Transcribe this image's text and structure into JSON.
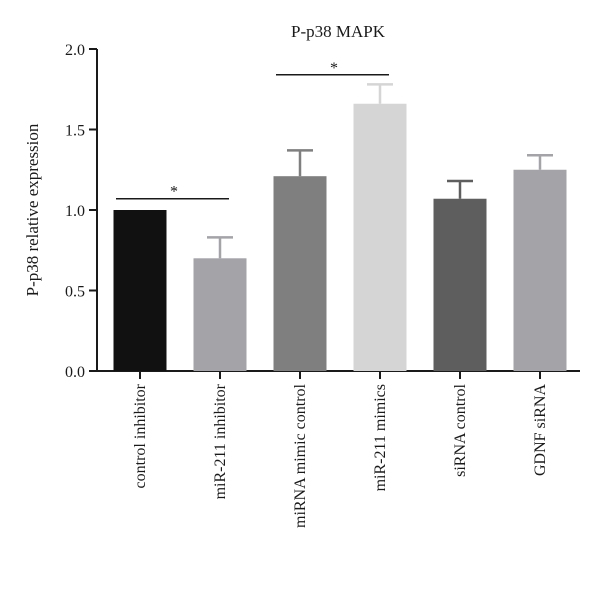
{
  "chart_data": {
    "type": "bar",
    "title": "P-p38 MAPK",
    "xlabel": "",
    "ylabel": "P-p38 relative expression",
    "ylim": [
      0,
      2.0
    ],
    "yticks": [
      0.0,
      0.5,
      1.0,
      1.5,
      2.0
    ],
    "ytick_labels": [
      "0.0",
      "0.5",
      "1.0",
      "1.5",
      "2.0"
    ],
    "grid": false,
    "legend": "none",
    "categories": [
      "control inhibitor",
      "miR-211 inhibitor",
      "miRNA mimic control",
      "miR-211 mimics",
      "siRNA control",
      "GDNF siRNA"
    ],
    "values": [
      1.0,
      0.7,
      1.21,
      1.66,
      1.07,
      1.25
    ],
    "errors": [
      0.0,
      0.13,
      0.16,
      0.12,
      0.11,
      0.09
    ],
    "colors": [
      "#111111",
      "#a3a3a8",
      "#7f7f7f",
      "#d5d5d5",
      "#5e5e5e",
      "#a3a3a8"
    ],
    "significance": [
      {
        "from": 0,
        "to": 1,
        "y": 1.07,
        "label": "*"
      },
      {
        "from": 2,
        "to": 3,
        "y": 1.84,
        "label": "*"
      }
    ]
  }
}
